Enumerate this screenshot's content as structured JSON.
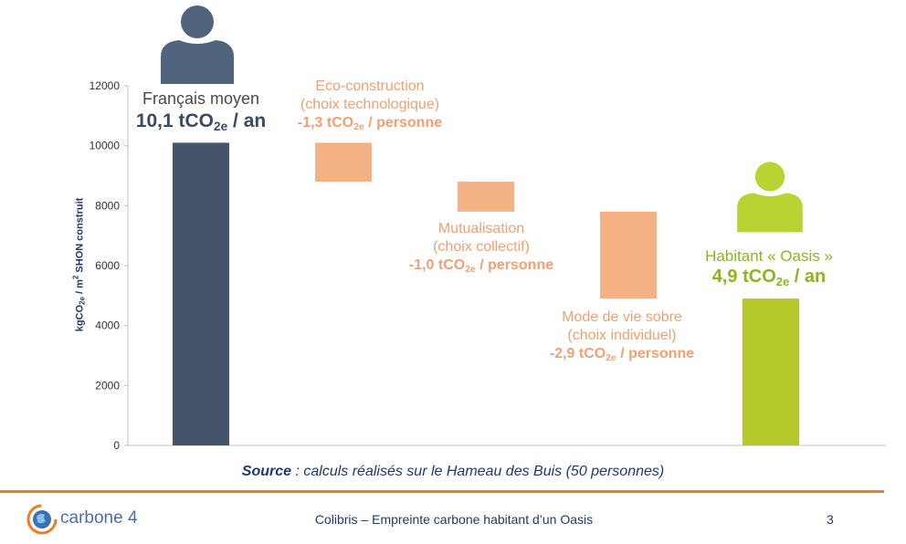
{
  "chart_data": {
    "type": "bar",
    "subtype": "waterfall",
    "ylim": [
      0,
      12000
    ],
    "yticks": [
      0,
      2000,
      4000,
      6000,
      8000,
      10000,
      12000
    ],
    "ylabel_parts": [
      "kgCO",
      "2e",
      " / m",
      "2",
      " SHON construit"
    ],
    "categories": [
      "Français moyen",
      "Eco-construction",
      "Mutualisation",
      "Mode de vie sobre",
      "Habitant « Oasis »"
    ],
    "bars": [
      {
        "name": "Français moyen",
        "start": 0,
        "end": 10100,
        "color": "#44546a"
      },
      {
        "name": "Eco-construction",
        "start": 8800,
        "end": 10100,
        "color": "#f4b183"
      },
      {
        "name": "Mutualisation",
        "start": 7800,
        "end": 8800,
        "color": "#f4b183"
      },
      {
        "name": "Mode de vie sobre",
        "start": 4900,
        "end": 7800,
        "color": "#f4b183"
      },
      {
        "name": "Habitant « Oasis »",
        "start": 0,
        "end": 4900,
        "color": "#b4c82a"
      }
    ],
    "annotations": [
      {
        "lines": [
          "Français moyen"
        ],
        "value_parts": [
          "10,1 tCO",
          "2e",
          " / an"
        ]
      },
      {
        "lines": [
          "Eco-construction",
          "(choix technologique)"
        ],
        "value_parts": [
          "-1,3 tCO",
          "2e",
          " / personne"
        ]
      },
      {
        "lines": [
          "Mutualisation",
          "(choix collectif)"
        ],
        "value_parts": [
          "-1,0 tCO",
          "2e",
          " / personne"
        ]
      },
      {
        "lines": [
          "Mode de vie sobre",
          "(choix individuel)"
        ],
        "value_parts": [
          "-2,9 tCO",
          "2e",
          " / personne"
        ]
      },
      {
        "lines": [
          "Habitant « Oasis »"
        ],
        "value_parts": [
          "4,9 tCO",
          "2e",
          " / an"
        ]
      }
    ]
  },
  "source": {
    "label": "Source",
    "text": " : calculs réalisés sur le Hameau des Buis (50 personnes)"
  },
  "footer": {
    "brand": "carbone 4",
    "title": "Colibris – Empreinte carbone habitant d’un Oasis",
    "page": "3"
  },
  "colors": {
    "axis": "#bfbfbf",
    "accent_rule": "#f07d20",
    "text_blue": "#1f3a6b",
    "person_dark": "#50647d",
    "person_green": "#b7d433"
  },
  "icons": [
    "person-dark-icon",
    "person-green-icon",
    "carbone4-logo-icon"
  ]
}
